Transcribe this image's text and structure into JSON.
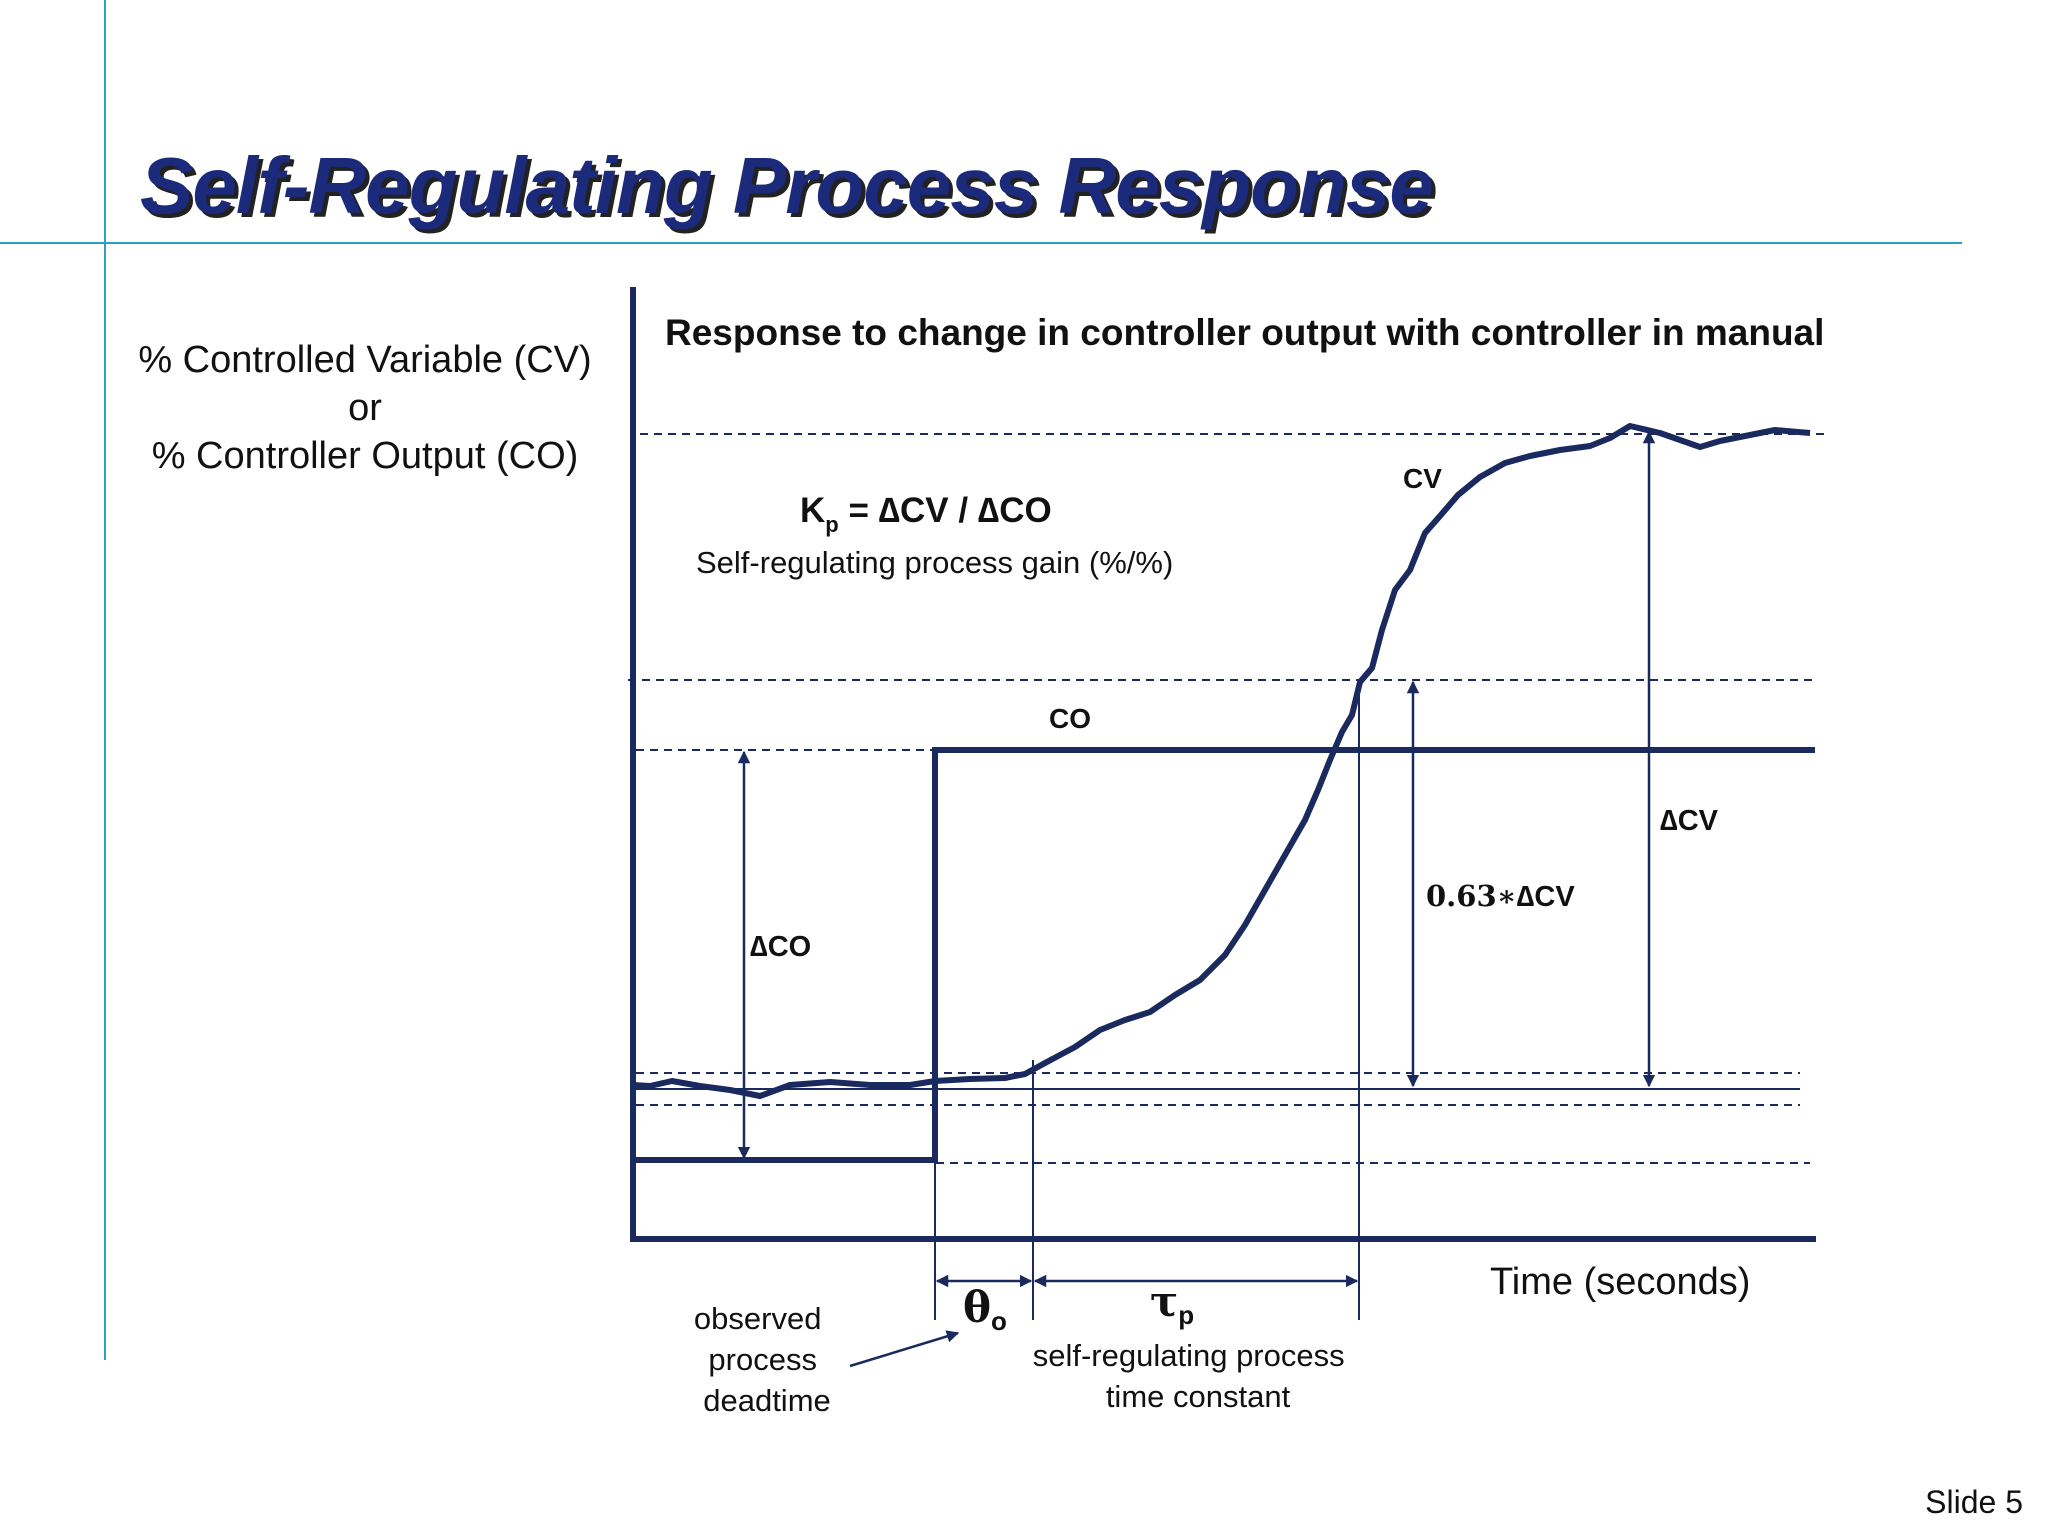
{
  "slide": {
    "title": "Self-Regulating Process Response",
    "number_label": "Slide 5"
  },
  "y_axis_label": {
    "line1": "% Controlled Variable (CV)",
    "line2": "or",
    "line3": "% Controller Output (CO)"
  },
  "diagram": {
    "heading": "Response to change in controller output with controller in manual",
    "gain_formula": {
      "k": "K",
      "sub": "p",
      "rest": " = ∆CV / ∆CO"
    },
    "gain_description": "Self-regulating process gain (%/%)",
    "cv_label": "CV",
    "co_label": "CO",
    "delta_co_label": "∆CO",
    "delta_cv_label": "∆CV",
    "frac_prefix": "0.63∗",
    "frac_suffix": "∆CV",
    "time_label": "Time (seconds)",
    "deadtime_symbol": "θ",
    "deadtime_sub": "o",
    "tau_symbol": "τ",
    "tau_sub": "p",
    "deadtime_text": [
      "observed",
      "process",
      "deadtime"
    ],
    "tau_text": [
      "self-regulating process",
      "time constant"
    ],
    "colors": {
      "curve": "#1b2a5e",
      "title": "#1b2a7a",
      "guide": "#2e9fc4"
    }
  }
}
